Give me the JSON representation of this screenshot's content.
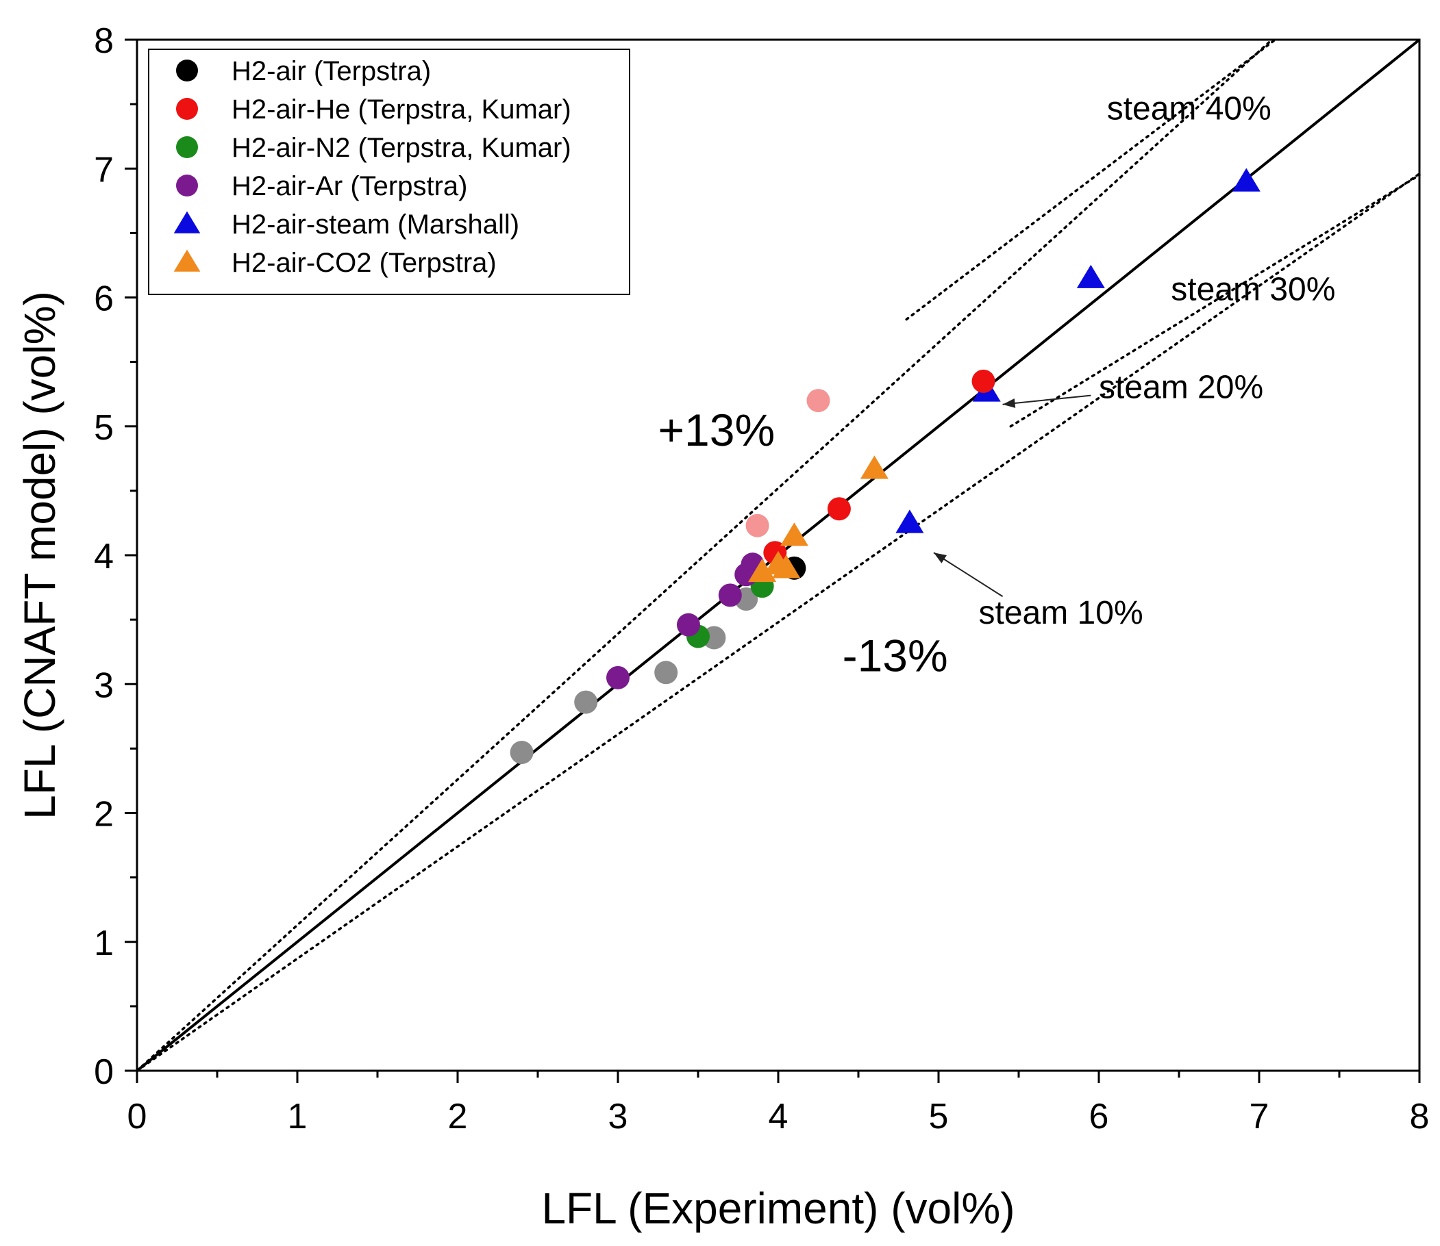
{
  "chart_data": {
    "type": "scatter",
    "title": "",
    "xlabel": "LFL (Experiment) (vol%)",
    "ylabel": "LFL (CNAFT model) (vol%)",
    "xlim": [
      0,
      8
    ],
    "ylim": [
      0,
      8
    ],
    "xticks": [
      0,
      1,
      2,
      3,
      4,
      5,
      6,
      7,
      8
    ],
    "yticks": [
      0,
      1,
      2,
      3,
      4,
      5,
      6,
      7,
      8
    ],
    "x_tick_labels": [
      "0",
      "1",
      "2",
      "3",
      "4",
      "5",
      "6",
      "7",
      "8"
    ],
    "y_tick_labels": [
      "0",
      "1",
      "2",
      "3",
      "4",
      "5",
      "6",
      "7",
      "8"
    ],
    "grid": false,
    "legend_position": "top-left",
    "series": [
      {
        "name": "H2-air (Terpstra)",
        "marker": "circle",
        "color": "#000000",
        "points": [
          [
            4.1,
            3.9
          ]
        ]
      },
      {
        "name": "H2-air-He (Terpstra, Kumar)",
        "marker": "circle",
        "color": "#ee1111",
        "points": [
          [
            3.98,
            4.02
          ],
          [
            4.38,
            4.36
          ],
          [
            5.28,
            5.35
          ]
        ]
      },
      {
        "name": "H2-air-N2 (Terpstra, Kumar)",
        "marker": "circle",
        "color": "#1a8a1a",
        "points": [
          [
            3.9,
            3.76
          ],
          [
            3.5,
            3.37
          ]
        ]
      },
      {
        "name": "H2-air-Ar (Terpstra)",
        "marker": "circle",
        "color": "#7b1a8f",
        "points": [
          [
            3.0,
            3.05
          ],
          [
            3.44,
            3.46
          ],
          [
            3.7,
            3.69
          ],
          [
            3.8,
            3.85
          ],
          [
            3.84,
            3.93
          ]
        ]
      },
      {
        "name": "H2-air-steam (Marshall)",
        "marker": "triangle",
        "color": "#0a0ae0",
        "points": [
          [
            4.82,
            4.25
          ],
          [
            5.3,
            5.27
          ],
          [
            5.95,
            6.15
          ],
          [
            6.92,
            6.9
          ]
        ]
      },
      {
        "name": "H2-air-CO2 (Terpstra)",
        "marker": "triangle",
        "color": "#f08a1c",
        "points": [
          [
            3.9,
            3.87
          ],
          [
            4.0,
            3.93
          ],
          [
            4.05,
            3.9
          ],
          [
            4.1,
            4.15
          ],
          [
            4.6,
            4.67
          ]
        ]
      }
    ],
    "extra_points": [
      {
        "name": "light-red-points",
        "marker": "circle",
        "color": "#f49494",
        "points": [
          [
            4.25,
            5.2
          ],
          [
            3.87,
            4.23
          ]
        ]
      },
      {
        "name": "gray-points",
        "marker": "circle",
        "color": "#8c8c8c",
        "points": [
          [
            2.4,
            2.47
          ],
          [
            2.8,
            2.86
          ],
          [
            3.3,
            3.09
          ],
          [
            3.6,
            3.36
          ],
          [
            3.8,
            3.66
          ]
        ]
      }
    ],
    "lines": [
      {
        "name": "parity",
        "style": "solid",
        "slope": 1.0
      },
      {
        "name": "plus-13",
        "style": "dotted",
        "slope": 1.13
      },
      {
        "name": "minus-13",
        "style": "dotted",
        "slope": 0.87
      }
    ],
    "steam_lines": [
      {
        "name": "steam-40",
        "points": [
          [
            4.8,
            5.83
          ],
          [
            7.1,
            8.0
          ]
        ]
      },
      {
        "name": "steam-30",
        "points": [
          [
            5.45,
            5.0
          ],
          [
            8.0,
            6.95
          ]
        ]
      }
    ],
    "annotations": [
      {
        "name": "plus-13-label",
        "text": "+13%",
        "x": 3.25,
        "y": 4.85
      },
      {
        "name": "minus-13-label",
        "text": "-13%",
        "x": 4.4,
        "y": 3.1
      },
      {
        "name": "steam-40-label",
        "text": "steam 40%",
        "x": 6.05,
        "y": 7.38
      },
      {
        "name": "steam-30-label",
        "text": "steam 30%",
        "x": 6.45,
        "y": 5.98
      },
      {
        "name": "steam-20-label",
        "text": "steam 20%",
        "x": 6.0,
        "y": 5.22,
        "arrow_to": [
          5.4,
          5.17
        ],
        "arrow_from": [
          5.95,
          5.24
        ]
      },
      {
        "name": "steam-10-label",
        "text": "steam 10%",
        "x": 5.25,
        "y": 3.47,
        "arrow_to": [
          4.97,
          4.02
        ],
        "arrow_from": [
          5.4,
          3.68
        ]
      }
    ]
  }
}
